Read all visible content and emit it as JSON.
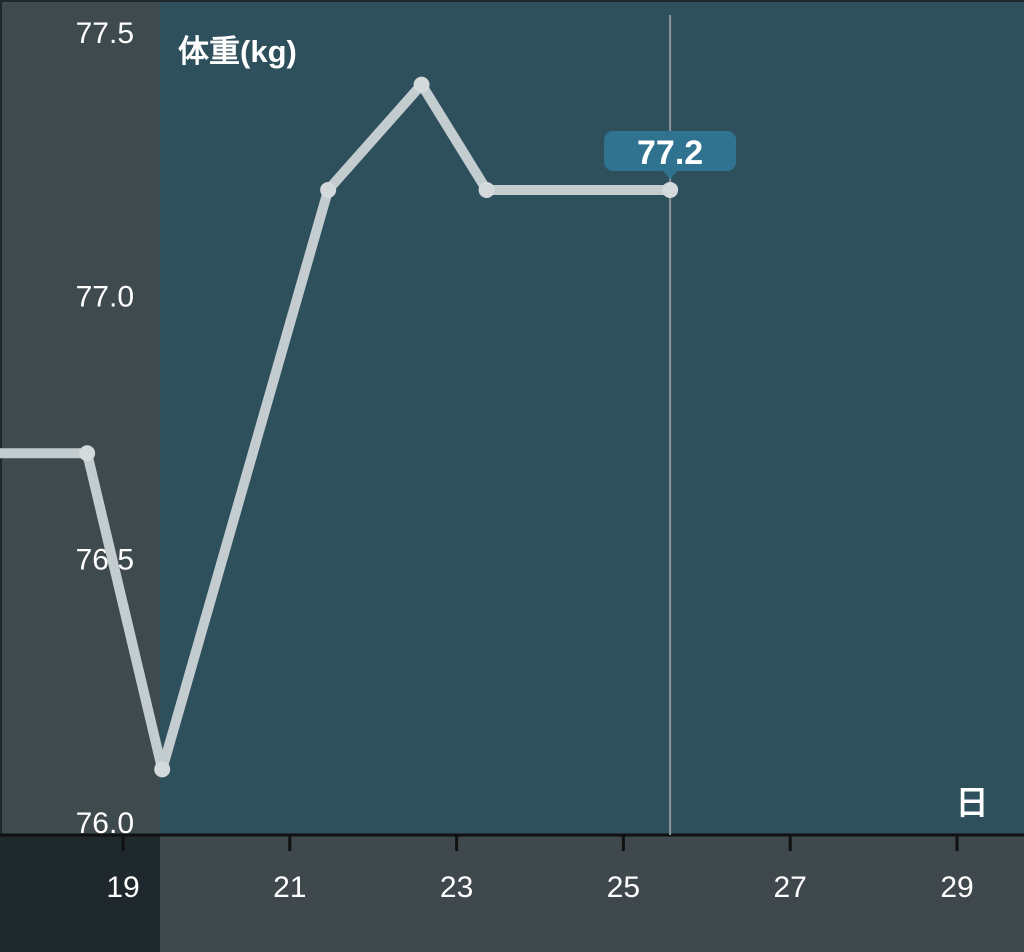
{
  "chart_data": {
    "type": "line",
    "ylabel": "体重(kg)",
    "xlabel": "日",
    "ylim": [
      76.0,
      77.5
    ],
    "yticks": [
      "77.5",
      "77.0",
      "76.5",
      "76.0"
    ],
    "xlim": [
      17.55,
      29.8
    ],
    "xticks": [
      "19",
      "21",
      "23",
      "25",
      "27",
      "29"
    ],
    "series": [
      {
        "x": [
          17.3,
          18.57,
          19.47,
          21.46,
          22.58,
          23.36,
          25.56
        ],
        "y": [
          76.7,
          76.7,
          76.1,
          77.2,
          77.4,
          77.2,
          77.2
        ]
      }
    ],
    "cursor": {
      "x": 25.56,
      "value_label": "77.2"
    },
    "grid": false,
    "colors": {
      "plot_bg": "#2e4f5c",
      "yaxis_bg": "#3f4a4f",
      "xaxis_bg": "#3f484d",
      "corner_bg": "#1e282d",
      "line": "#c3cccf",
      "tooltip": "#2f7390",
      "cursor": "#8a9599"
    }
  }
}
